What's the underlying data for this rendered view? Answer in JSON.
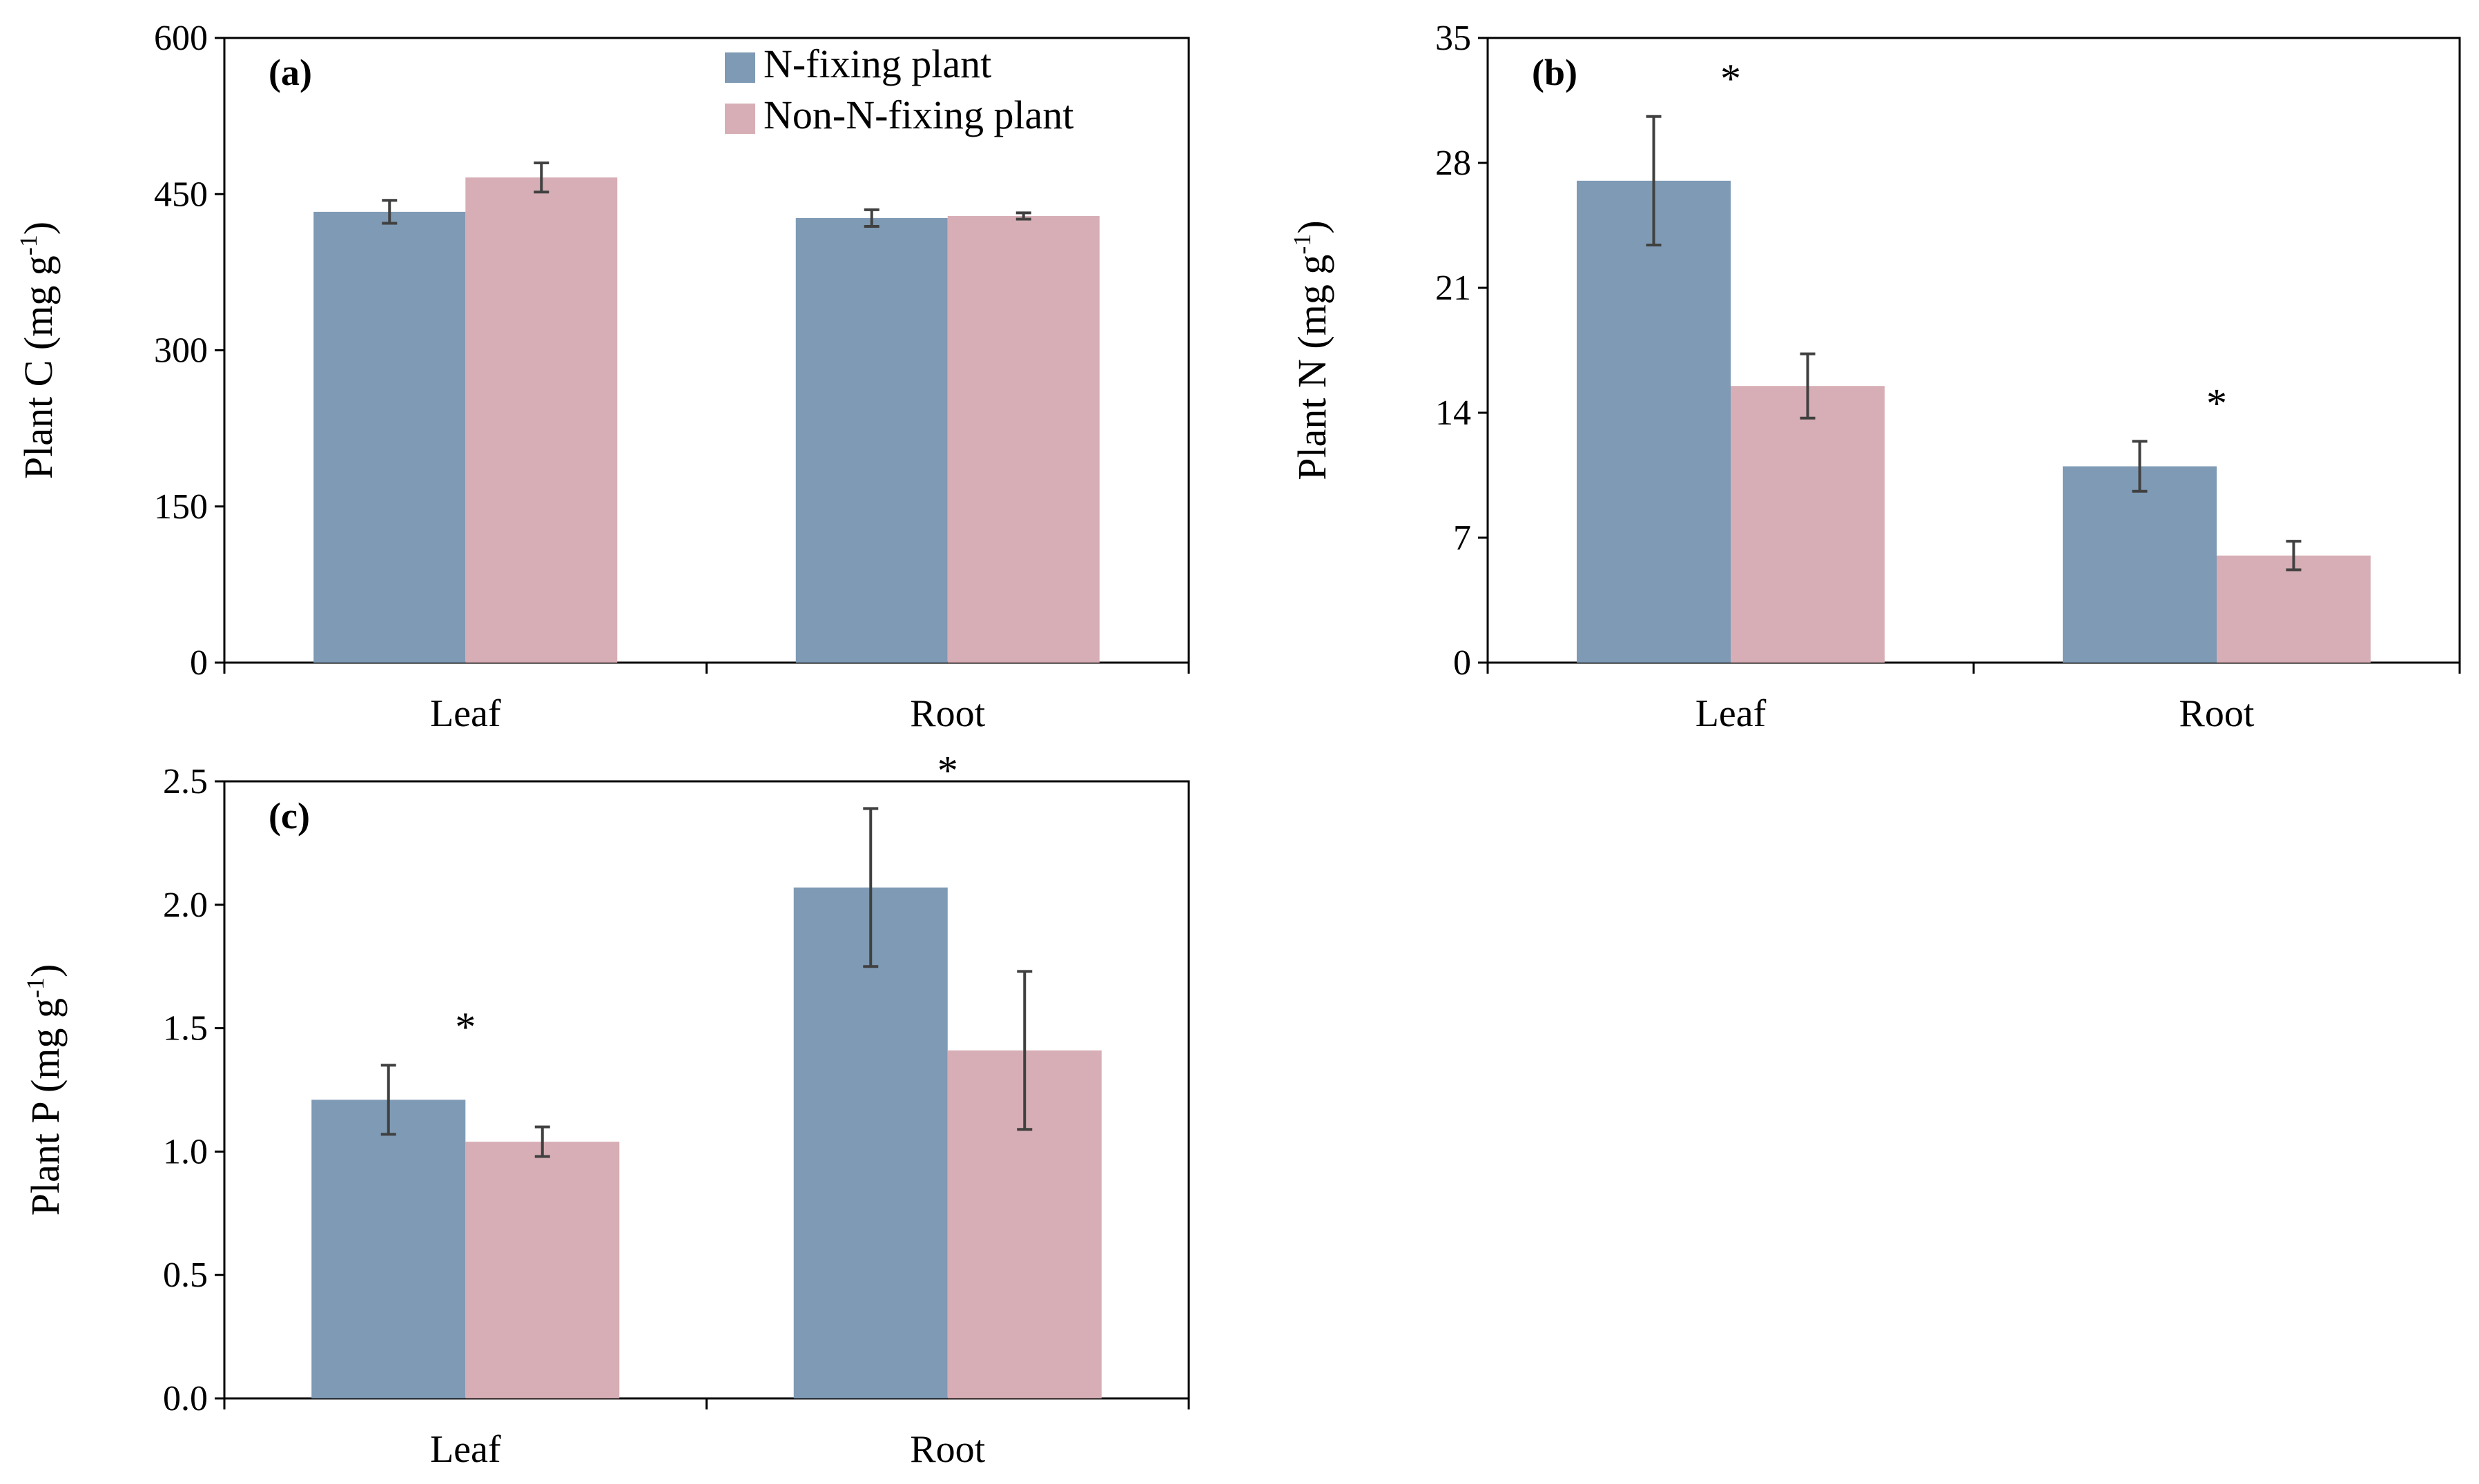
{
  "colors": {
    "n_fixing": "#7e9ab5",
    "non_n_fixing": "#d7aeb5",
    "error_bar": "#404040",
    "axis": "#000000"
  },
  "legend": {
    "n_fixing": "N-fixing plant",
    "non_n_fixing": "Non-N-fixing plant"
  },
  "chart_data": [
    {
      "id": "a",
      "type": "bar",
      "panel_label": "(a)",
      "ylabel_main": "Plant C (mg g",
      "ylabel_sup": "-1",
      "ylabel_close": ")",
      "categories": [
        "Leaf",
        "Root"
      ],
      "ylim": [
        0,
        600
      ],
      "yticks": [
        "0",
        "150",
        "300",
        "450",
        "600"
      ],
      "series": [
        {
          "name": "N-fixing plant",
          "values": [
            433,
            427
          ],
          "errors": [
            11,
            8
          ]
        },
        {
          "name": "Non-N-fixing plant",
          "values": [
            466,
            429
          ],
          "errors": [
            14,
            3
          ]
        }
      ],
      "significance": [
        "",
        ""
      ],
      "show_legend": true
    },
    {
      "id": "b",
      "type": "bar",
      "panel_label": "(b)",
      "ylabel_main": "Plant N (mg g",
      "ylabel_sup": "-1",
      "ylabel_close": ")",
      "categories": [
        "Leaf",
        "Root"
      ],
      "ylim": [
        0,
        35
      ],
      "yticks": [
        "0",
        "7",
        "14",
        "21",
        "28",
        "35"
      ],
      "series": [
        {
          "name": "N-fixing plant",
          "values": [
            27.0,
            11.0
          ],
          "errors": [
            3.6,
            1.4
          ]
        },
        {
          "name": "Non-N-fixing plant",
          "values": [
            15.5,
            6.0
          ],
          "errors": [
            1.8,
            0.8
          ]
        }
      ],
      "significance": [
        "*",
        "*"
      ],
      "show_legend": false
    },
    {
      "id": "c",
      "type": "bar",
      "panel_label": "(c)",
      "ylabel_main": "Plant P (mg g",
      "ylabel_sup": "-1",
      "ylabel_close": ")",
      "categories": [
        "Leaf",
        "Root"
      ],
      "ylim": [
        0,
        2.5
      ],
      "yticks": [
        "0.0",
        "0.5",
        "1.0",
        "1.5",
        "2.0",
        "2.5"
      ],
      "series": [
        {
          "name": "N-fixing plant",
          "values": [
            1.21,
            2.07
          ],
          "errors": [
            0.14,
            0.32
          ]
        },
        {
          "name": "Non-N-fixing plant",
          "values": [
            1.04,
            1.41
          ],
          "errors": [
            0.06,
            0.32
          ]
        }
      ],
      "significance": [
        "*",
        "*"
      ],
      "show_legend": false
    }
  ]
}
